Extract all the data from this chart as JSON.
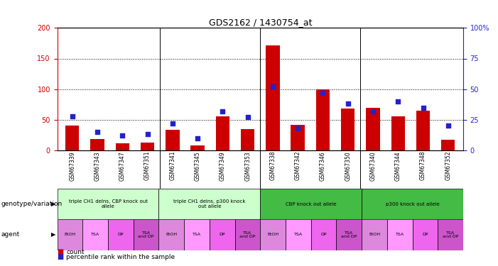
{
  "title": "GDS2162 / 1430754_at",
  "samples": [
    "GSM67339",
    "GSM67343",
    "GSM67347",
    "GSM67351",
    "GSM67341",
    "GSM67345",
    "GSM67349",
    "GSM67353",
    "GSM67338",
    "GSM67342",
    "GSM67346",
    "GSM67350",
    "GSM67340",
    "GSM67344",
    "GSM67348",
    "GSM67352"
  ],
  "counts": [
    40,
    18,
    12,
    13,
    33,
    8,
    55,
    35,
    172,
    42,
    100,
    68,
    70,
    55,
    65,
    17
  ],
  "percentiles": [
    28,
    15,
    12,
    13,
    22,
    10,
    32,
    27,
    52,
    18,
    47,
    38,
    32,
    40,
    35,
    20
  ],
  "bar_color": "#cc0000",
  "dot_color": "#2222cc",
  "left_axis_color": "#cc0000",
  "right_axis_color": "#2222cc",
  "ylim_left": [
    0,
    200
  ],
  "ylim_right": [
    0,
    100
  ],
  "yticks_left": [
    0,
    50,
    100,
    150,
    200
  ],
  "yticks_right": [
    0,
    25,
    50,
    75,
    100
  ],
  "geno_colors": [
    "#ccffcc",
    "#ccffcc",
    "#44bb44",
    "#44bb44"
  ],
  "geno_labels": [
    "triple CH1 delns, CBP knock out\nallele",
    "triple CH1 delns, p300 knock\nout allele",
    "CBP knock out allele",
    "p300 knock out allele"
  ],
  "geno_starts": [
    0,
    4,
    8,
    12
  ],
  "geno_ends": [
    4,
    8,
    12,
    16
  ],
  "agent_labels": [
    "EtOH",
    "TSA",
    "DP",
    "TSA\nand DP",
    "EtOH",
    "TSA",
    "DP",
    "TSA\nand DP",
    "EtOH",
    "TSA",
    "DP",
    "TSA\nand DP",
    "EtOH",
    "TSA",
    "DP",
    "TSA\nand DP"
  ],
  "agent_cell_colors": [
    "#dd88dd",
    "#ff99ff",
    "#ee66ee",
    "#cc55cc",
    "#dd88dd",
    "#ff99ff",
    "#ee66ee",
    "#cc55cc",
    "#dd88dd",
    "#ff99ff",
    "#ee66ee",
    "#cc55cc",
    "#dd88dd",
    "#ff99ff",
    "#ee66ee",
    "#cc55cc"
  ],
  "xlabel_label": "genotype/variation",
  "agent_label": "agent",
  "legend_count_color": "#cc0000",
  "legend_pct_color": "#2222cc",
  "bg_color": "#ffffff",
  "xticklabel_bg": "#bbbbbb",
  "title_fontsize": 9
}
